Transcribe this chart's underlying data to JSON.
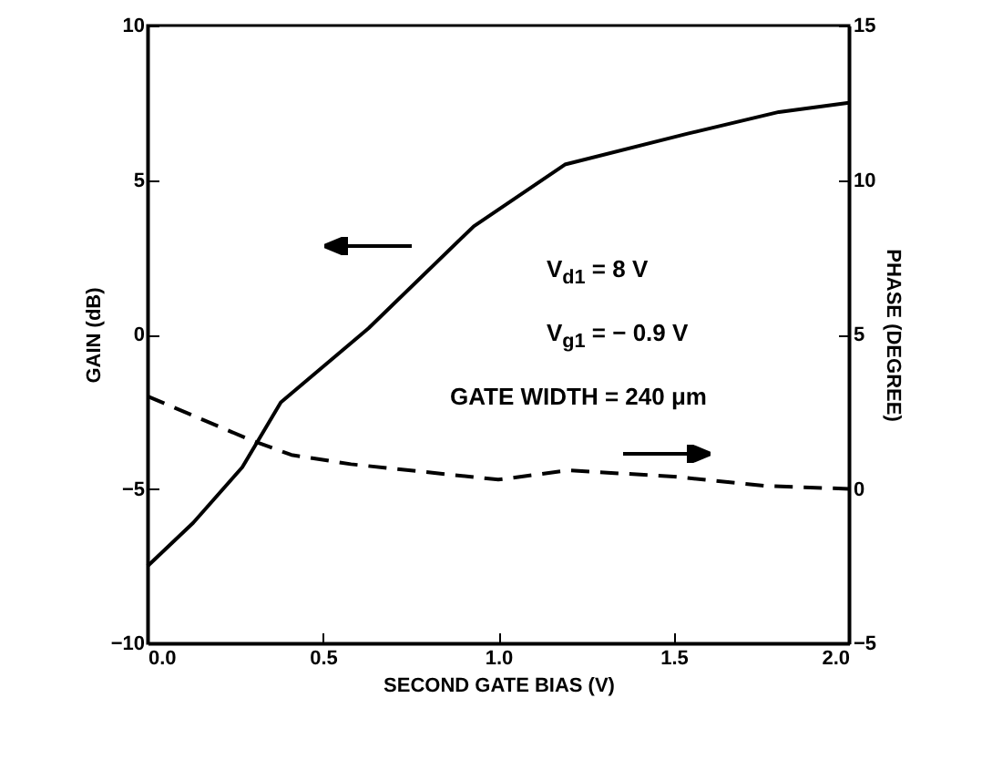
{
  "chart_data": {
    "type": "line",
    "xlabel": "SECOND GATE BIAS (V)",
    "ylabel": "GAIN (dB)",
    "y2label": "PHASE (DEGREE)",
    "xlim": [
      0,
      2
    ],
    "xticks": [
      {
        "value": 0,
        "label": "0.0"
      },
      0.5,
      {
        "value": 1,
        "label": "1.0"
      },
      1.5,
      {
        "value": 2,
        "label": "2.0"
      }
    ],
    "ylim": [
      -10,
      10
    ],
    "yticks": [
      -10,
      -5,
      0,
      5,
      10
    ],
    "y2lim": [
      -5,
      15
    ],
    "y2ticks": [
      -5,
      0,
      5,
      10,
      15
    ],
    "grid": false,
    "annotations": [
      "V$_{d1}$ = 8 V",
      "V$_{g1}$ = − 0.9 V",
      "GATE WIDTH = 240 μm"
    ],
    "series": [
      {
        "color": "#000000",
        "line_style": "solid",
        "x": [
          0,
          0.13,
          0.27,
          0.38,
          0.63,
          0.93,
          1.19,
          1.54,
          1.8,
          2.0
        ],
        "values": [
          -7.5,
          -6.1,
          -4.3,
          -2.2,
          0.2,
          3.5,
          5.5,
          6.5,
          7.2,
          7.5
        ]
      },
      {
        "color": "#000000",
        "line_style": "dashed",
        "axis": "y2",
        "x": [
          0,
          0.29,
          0.41,
          0.58,
          1.0,
          1.2,
          1.5,
          1.76,
          2.0
        ],
        "values": [
          3.0,
          1.6,
          1.1,
          0.8,
          0.3,
          0.6,
          0.4,
          0.1,
          0.0
        ]
      }
    ]
  }
}
